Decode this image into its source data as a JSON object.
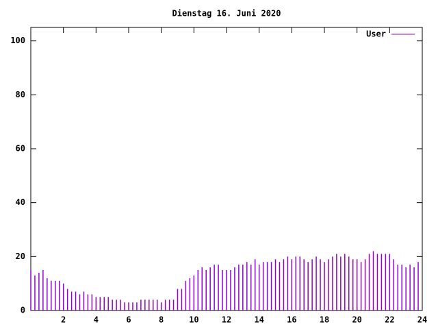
{
  "chart_data": {
    "type": "impulse",
    "title": "Dienstag 16. Juni 2020",
    "x": [
      0,
      0.25,
      0.5,
      0.75,
      1,
      1.25,
      1.5,
      1.75,
      2,
      2.25,
      2.5,
      2.75,
      3,
      3.25,
      3.5,
      3.75,
      4,
      4.25,
      4.5,
      4.75,
      5,
      5.25,
      5.5,
      5.75,
      6,
      6.25,
      6.5,
      6.75,
      7,
      7.25,
      7.5,
      7.75,
      8,
      8.25,
      8.5,
      8.75,
      9,
      9.25,
      9.5,
      9.75,
      10,
      10.25,
      10.5,
      10.75,
      11,
      11.25,
      11.5,
      11.75,
      12,
      12.25,
      12.5,
      12.75,
      13,
      13.25,
      13.5,
      13.75,
      14,
      14.25,
      14.5,
      14.75,
      15,
      15.25,
      15.5,
      15.75,
      16,
      16.25,
      16.5,
      16.75,
      17,
      17.25,
      17.5,
      17.75,
      18,
      18.25,
      18.5,
      18.75,
      19,
      19.25,
      19.5,
      19.75,
      20,
      20.25,
      20.5,
      20.75,
      21,
      21.25,
      21.5,
      21.75,
      22,
      22.25,
      22.5,
      22.75,
      23,
      23.25,
      23.5,
      23.75
    ],
    "series": [
      {
        "name": "User",
        "color": "#9400d3",
        "values": [
          15,
          13,
          14,
          15,
          12,
          11,
          11,
          11,
          10,
          8,
          7,
          7,
          6,
          7,
          6,
          6,
          5,
          5,
          5,
          5,
          4,
          4,
          4,
          3,
          3,
          3,
          3,
          4,
          4,
          4,
          4,
          4,
          3,
          4,
          4,
          4,
          8,
          8,
          11,
          12,
          13,
          15,
          16,
          15,
          16,
          17,
          17,
          15,
          15,
          15,
          16,
          17,
          17,
          18,
          17,
          19,
          17,
          18,
          18,
          18,
          19,
          18,
          19,
          20,
          19,
          20,
          20,
          19,
          18,
          19,
          20,
          19,
          18,
          19,
          20,
          21,
          20,
          21,
          20,
          19,
          19,
          18,
          19,
          21,
          22,
          21,
          21,
          21,
          21,
          19,
          17,
          17,
          16,
          17,
          16,
          18
        ]
      }
    ],
    "xlim": [
      0,
      24
    ],
    "xticks": [
      2,
      4,
      6,
      8,
      10,
      12,
      14,
      16,
      18,
      20,
      22,
      24
    ],
    "ylim": [
      0,
      105
    ],
    "yticks": [
      0,
      20,
      40,
      60,
      80,
      100
    ],
    "legend": "upper right"
  }
}
